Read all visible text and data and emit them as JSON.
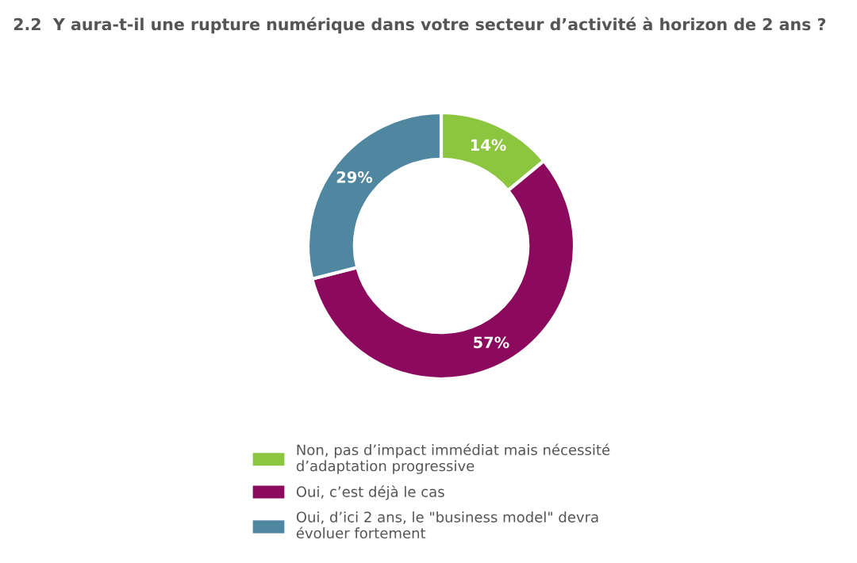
{
  "chart_data": {
    "type": "donut",
    "title": "2.2  Y aura-t-il une rupture numérique dans votre secteur d’activité à horizon de 2 ans ?",
    "categories": [
      "Non, pas d’impact immédiat mais nécessité\nd’adaptation progressive",
      "Oui, c’est déjà le cas",
      "Oui, d’ici 2 ans, le \"business model\" devra\névoluer fortement"
    ],
    "values": [
      14,
      57,
      29
    ],
    "value_labels": [
      "14%",
      "57%",
      "29%"
    ],
    "colors": [
      "#8cc63f",
      "#8b0a5e",
      "#4f87a0"
    ],
    "legend": "bottom"
  }
}
